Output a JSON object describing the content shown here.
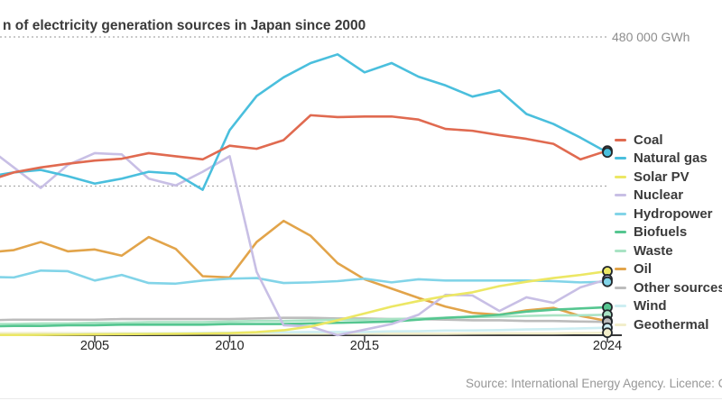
{
  "title": "n of electricity generation sources in Japan since 2000",
  "axis": {
    "y_gridline_label": "480 000 GWh"
  },
  "source": "Source: International Energy Agency. Licence: C",
  "colors": {
    "axis": "#37383a",
    "gridline": "#ababab",
    "marker_outline": "#22272b",
    "title_text": "#3a3a3a",
    "tick_text": "#242424",
    "gridline_label_text": "#8d8d8d",
    "source_text": "#979797"
  },
  "chart_data": {
    "type": "line",
    "unit": "GWh",
    "ylim": [
      0,
      480000
    ],
    "y_gridlines": [
      240000,
      480000
    ],
    "grid_style": "dotted horizontal",
    "legend_position": "right",
    "x_ticks": [
      2005,
      2010,
      2015,
      2024
    ],
    "x": [
      2000,
      2001,
      2002,
      2003,
      2004,
      2005,
      2006,
      2007,
      2008,
      2009,
      2010,
      2011,
      2012,
      2013,
      2014,
      2015,
      2016,
      2017,
      2018,
      2019,
      2020,
      2021,
      2022,
      2023,
      2024
    ],
    "series": [
      {
        "name": "Coal",
        "color": "#e06a50",
        "values": [
          232000,
          248000,
          262000,
          270000,
          276000,
          281000,
          284000,
          293000,
          288000,
          283000,
          305000,
          300000,
          314000,
          354000,
          351000,
          352000,
          352000,
          347000,
          332000,
          329000,
          322000,
          316000,
          308000,
          283000,
          297000
        ]
      },
      {
        "name": "Natural gas",
        "color": "#4abfdd",
        "values": [
          246000,
          255000,
          262000,
          266000,
          256000,
          244000,
          252000,
          263000,
          260000,
          234000,
          330000,
          385000,
          415000,
          438000,
          452000,
          423000,
          438000,
          416000,
          402000,
          384000,
          394000,
          356000,
          340000,
          318000,
          294000
        ]
      },
      {
        "name": "Solar PV",
        "color": "#ece764",
        "values": [
          300,
          400,
          500,
          700,
          900,
          1400,
          1700,
          2000,
          2300,
          2700,
          3300,
          5000,
          8000,
          14000,
          24000,
          35000,
          46000,
          55000,
          63000,
          69000,
          79000,
          86000,
          92000,
          97000,
          103000
        ]
      },
      {
        "name": "Nuclear",
        "color": "#c8bfe5",
        "values": [
          319000,
          303000,
          270000,
          237000,
          274000,
          293000,
          291000,
          252000,
          241000,
          263000,
          288000,
          102000,
          16000,
          14000,
          0,
          9000,
          18000,
          33000,
          65000,
          64000,
          39000,
          61000,
          52000,
          77000,
          90000
        ]
      },
      {
        "name": "Hydropower",
        "color": "#82d4e8",
        "values": [
          97000,
          94000,
          93000,
          104000,
          103000,
          88000,
          97000,
          84000,
          83000,
          88000,
          91000,
          92000,
          84000,
          85000,
          87000,
          91000,
          85000,
          90000,
          88000,
          88000,
          88000,
          88000,
          87000,
          85000,
          86000
        ]
      },
      {
        "name": "Biofuels",
        "color": "#55c690",
        "values": [
          14000,
          14000,
          15000,
          15000,
          16000,
          16000,
          17000,
          17000,
          17000,
          17000,
          18000,
          18000,
          18000,
          19000,
          20000,
          21000,
          22000,
          25000,
          28000,
          30000,
          33000,
          38000,
          41000,
          43000,
          45000
        ]
      },
      {
        "name": "Waste",
        "color": "#a9e3c4",
        "values": [
          17000,
          18000,
          18000,
          19000,
          19000,
          20000,
          20000,
          21000,
          21000,
          21000,
          22000,
          23000,
          23000,
          24000,
          25000,
          25000,
          26000,
          27000,
          28000,
          29000,
          30000,
          31000,
          32000,
          32000,
          33000
        ]
      },
      {
        "name": "Oil",
        "color": "#e2a44a",
        "values": [
          140000,
          133000,
          137000,
          150000,
          135000,
          138000,
          128000,
          158000,
          139000,
          95000,
          93000,
          150000,
          184000,
          160000,
          116000,
          90000,
          75000,
          60000,
          46000,
          36000,
          33000,
          40000,
          44000,
          31000,
          23000
        ]
      },
      {
        "name": "Other sources",
        "color": "#bcbcbc",
        "values": [
          24000,
          24000,
          25000,
          25000,
          25000,
          25000,
          26000,
          26000,
          26000,
          26000,
          26000,
          27000,
          28000,
          28000,
          27000,
          27000,
          26000,
          26000,
          25000,
          24000,
          24000,
          23000,
          23000,
          22000,
          21500
        ]
      },
      {
        "name": "Wind",
        "color": "#cdeef2",
        "values": [
          100,
          300,
          500,
          1000,
          1300,
          1800,
          2200,
          2600,
          3000,
          3600,
          4000,
          4700,
          4800,
          5200,
          5200,
          5200,
          6200,
          6500,
          7500,
          7700,
          8300,
          9400,
          9900,
          11000,
          12000
        ]
      },
      {
        "name": "Geothermal",
        "color": "#f2eecb",
        "values": [
          3300,
          3400,
          3400,
          3500,
          3400,
          3200,
          3100,
          3000,
          2800,
          2800,
          2600,
          2700,
          2600,
          2600,
          2600,
          2600,
          2500,
          2500,
          2500,
          2800,
          3000,
          3000,
          3000,
          3400,
          4000
        ]
      }
    ]
  }
}
